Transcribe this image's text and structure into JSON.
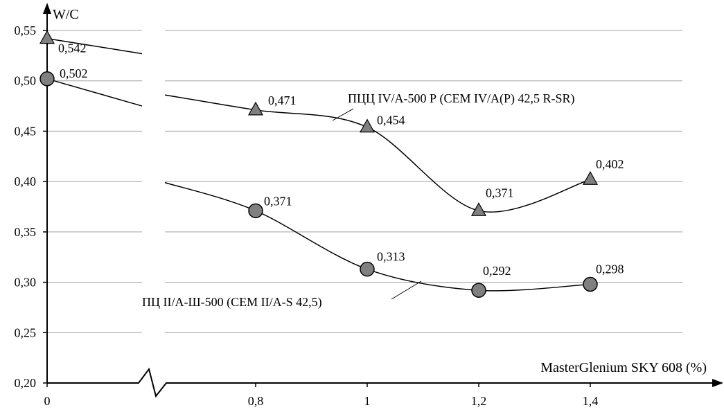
{
  "chart_data": {
    "type": "line",
    "ylabel": "W/C",
    "xlabel": "MasterGlenium SKY 608 (%)",
    "ylim": [
      0.2,
      0.55
    ],
    "yticks": [
      "0,20",
      "0,25",
      "0,30",
      "0,35",
      "0,40",
      "0,45",
      "0,50",
      "0,55"
    ],
    "ytick_values": [
      0.2,
      0.25,
      0.3,
      0.35,
      0.4,
      0.45,
      0.5,
      0.55
    ],
    "xticks": [
      "0",
      "0,8",
      "1",
      "1,2",
      "1,4"
    ],
    "x": [
      0,
      0.8,
      1.0,
      1.2,
      1.4
    ],
    "grid": true,
    "axis_break": true,
    "series": [
      {
        "name": "ПЦЦ IV/А-500 Р (CEM IV/A(P) 42,5 R-SR)",
        "marker": "triangle",
        "values": [
          0.542,
          0.471,
          0.454,
          0.371,
          0.402
        ],
        "labels": [
          "0,542",
          "0,471",
          "0,454",
          "0,371",
          "0,402"
        ]
      },
      {
        "name": "ПЦ II/А-Ш-500 (CEM II/A-S 42,5)",
        "marker": "circle",
        "values": [
          0.502,
          0.371,
          0.313,
          0.292,
          0.298
        ],
        "labels": [
          "0,502",
          "0,371",
          "0,313",
          "0,292",
          "0,298"
        ]
      }
    ],
    "colors": {
      "marker_fill": "#808080",
      "line": "#000000",
      "grid": "#a0a0a0"
    }
  }
}
